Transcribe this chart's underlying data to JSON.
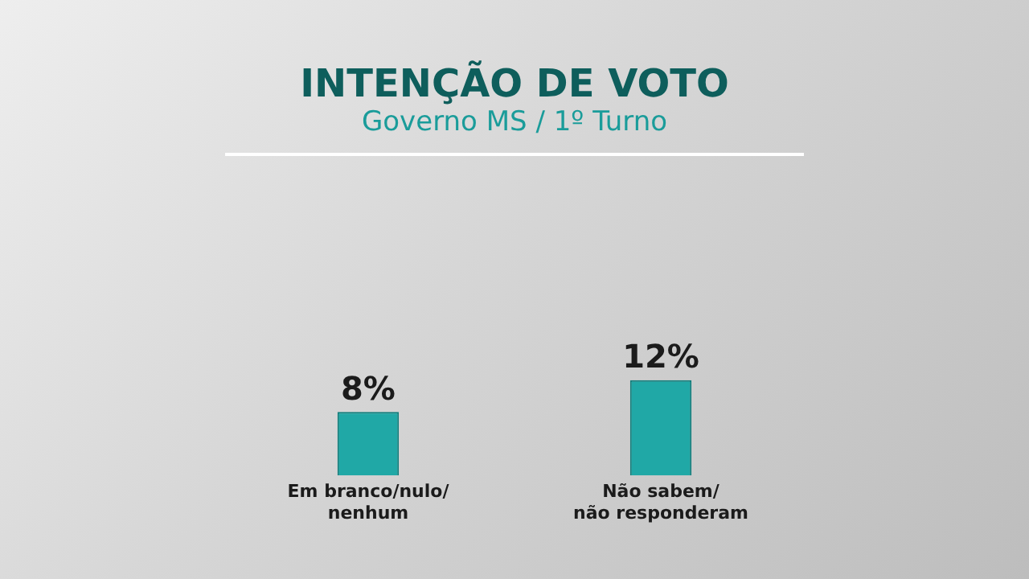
{
  "chart_data": {
    "type": "bar",
    "title": "INTENÇÃO DE VOTO",
    "subtitle": "Governo MS / 1º Turno",
    "categories": [
      "Em branco/nulo/ nenhum",
      "Não sabem/ não responderam"
    ],
    "values": [
      8,
      12
    ],
    "color": "#20a8a6",
    "value_labels": [
      "8%",
      "12%"
    ],
    "tick_labels": "x",
    "grid": false,
    "legend": false
  }
}
